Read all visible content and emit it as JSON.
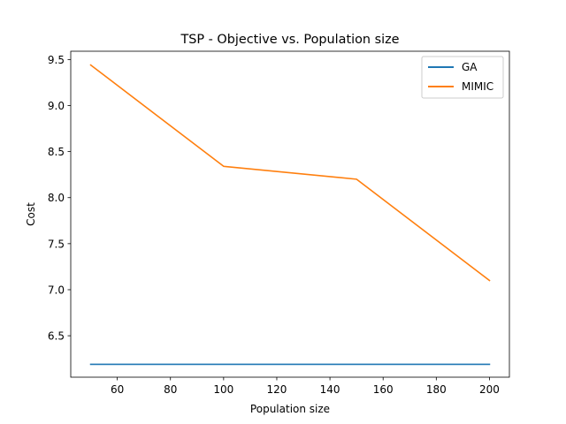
{
  "chart_data": {
    "type": "line",
    "title": "TSP - Objective vs. Population size",
    "xlabel": "Population size",
    "ylabel": "Cost",
    "xlim": [
      42.5,
      207.5
    ],
    "ylim": [
      6.05,
      9.59
    ],
    "xticks": [
      60,
      80,
      100,
      120,
      140,
      160,
      180,
      200
    ],
    "yticks": [
      6.5,
      7.0,
      7.5,
      8.0,
      8.5,
      9.0,
      9.5
    ],
    "xtick_labels": [
      "60",
      "80",
      "100",
      "120",
      "140",
      "160",
      "180",
      "200"
    ],
    "ytick_labels": [
      "6.5",
      "7.0",
      "7.5",
      "8.0",
      "8.5",
      "9.0",
      "9.5"
    ],
    "grid": false,
    "legend_position": "top-right",
    "x": [
      50,
      100,
      150,
      200
    ],
    "series": [
      {
        "name": "GA",
        "color": "#1f77b4",
        "values": [
          6.19,
          6.19,
          6.19,
          6.19
        ]
      },
      {
        "name": "MIMIC",
        "color": "#ff7f0e",
        "values": [
          9.44,
          8.34,
          8.2,
          7.1
        ]
      }
    ]
  }
}
